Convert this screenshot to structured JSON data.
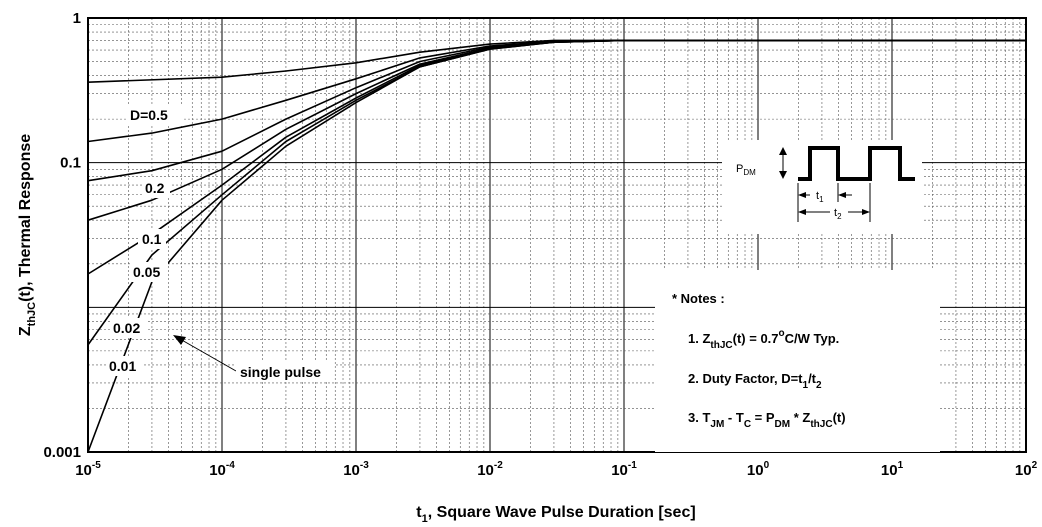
{
  "chart_data": {
    "type": "line",
    "x_scale": "log",
    "y_scale": "log",
    "xlim": [
      1e-05,
      100
    ],
    "ylim": [
      0.001,
      1
    ],
    "xlabel_main": "t",
    "xlabel_sub": "1",
    "xlabel_rest": ", Square Wave Pulse Duration [sec]",
    "ylabel_main": "Z",
    "ylabel_sub": "thJC",
    "ylabel_rest": "(t), Thermal Response",
    "x_ticks": [
      {
        "value": 1e-05,
        "base": "10",
        "exp": "-5"
      },
      {
        "value": 0.0001,
        "base": "10",
        "exp": "-4"
      },
      {
        "value": 0.001,
        "base": "10",
        "exp": "-3"
      },
      {
        "value": 0.01,
        "base": "10",
        "exp": "-2"
      },
      {
        "value": 0.1,
        "base": "10",
        "exp": "-1"
      },
      {
        "value": 1,
        "base": "10",
        "exp": "0"
      },
      {
        "value": 10,
        "base": "10",
        "exp": "1"
      },
      {
        "value": 100,
        "base": "10",
        "exp": "2"
      }
    ],
    "y_ticks": [
      {
        "value": 1,
        "label": "1"
      },
      {
        "value": 0.1,
        "label": "0.1"
      },
      {
        "value": 0.001,
        "label": "0.001"
      }
    ],
    "grid": true,
    "series": [
      {
        "name": "D=0.5",
        "x": [
          1e-05,
          0.0001,
          0.0003,
          0.001,
          0.003,
          0.01,
          0.03,
          0.1,
          100
        ],
        "y": [
          0.36,
          0.39,
          0.43,
          0.49,
          0.58,
          0.66,
          0.7,
          0.7,
          0.7
        ]
      },
      {
        "name": "0.2",
        "x": [
          1e-05,
          3e-05,
          0.0001,
          0.0003,
          0.001,
          0.003,
          0.01,
          0.03,
          0.1,
          100
        ],
        "y": [
          0.14,
          0.16,
          0.2,
          0.27,
          0.38,
          0.53,
          0.64,
          0.69,
          0.7,
          0.7
        ]
      },
      {
        "name": "0.1",
        "x": [
          1e-05,
          3e-05,
          0.0001,
          0.0003,
          0.001,
          0.003,
          0.01,
          0.03,
          0.1,
          100
        ],
        "y": [
          0.075,
          0.088,
          0.12,
          0.2,
          0.33,
          0.5,
          0.63,
          0.69,
          0.7,
          0.7
        ]
      },
      {
        "name": "0.05",
        "x": [
          1e-05,
          3e-05,
          0.0001,
          0.0003,
          0.001,
          0.003,
          0.01,
          0.03,
          0.1,
          100
        ],
        "y": [
          0.04,
          0.055,
          0.09,
          0.17,
          0.3,
          0.48,
          0.62,
          0.68,
          0.7,
          0.7
        ]
      },
      {
        "name": "0.02",
        "x": [
          1e-05,
          3e-05,
          0.0001,
          0.0003,
          0.001,
          0.003,
          0.01,
          0.03,
          0.1,
          100
        ],
        "y": [
          0.017,
          0.032,
          0.07,
          0.15,
          0.28,
          0.47,
          0.62,
          0.68,
          0.7,
          0.7
        ]
      },
      {
        "name": "0.01",
        "x": [
          1e-05,
          3e-05,
          0.0001,
          0.0003,
          0.001,
          0.003,
          0.01,
          0.03,
          0.1,
          100
        ],
        "y": [
          0.0055,
          0.023,
          0.06,
          0.14,
          0.27,
          0.46,
          0.61,
          0.68,
          0.7,
          0.7
        ]
      },
      {
        "name": "single pulse",
        "x": [
          1e-05,
          3e-05,
          0.0001,
          0.0003,
          0.001,
          0.003,
          0.01,
          0.03,
          0.1,
          100
        ],
        "y": [
          0.001,
          0.015,
          0.055,
          0.13,
          0.26,
          0.46,
          0.61,
          0.68,
          0.7,
          0.7
        ]
      }
    ],
    "curve_labels": {
      "d05": "D=0.5",
      "d02": "0.2",
      "d01": "0.1",
      "d005": "0.05",
      "d002": "0.02",
      "d001": "0.01",
      "single": "single pulse"
    },
    "inset": {
      "pdm_main": "P",
      "pdm_sub": "DM",
      "t1_main": "t",
      "t1_sub": "1",
      "t2_main": "t",
      "t2_sub": "2"
    },
    "notes": {
      "title": "* Notes :",
      "n1_a": "1. Z",
      "n1_sub": "thJC",
      "n1_b": "(t) = 0.7",
      "n1_sup": "o",
      "n1_c": "C/W Typ.",
      "n2_a": "2. Duty Factor, D=t",
      "n2_sub1": "1",
      "n2_b": "/t",
      "n2_sub2": "2",
      "n3_a": "3. T",
      "n3_sub1": "JM",
      "n3_b": " - T",
      "n3_sub2": "C",
      "n3_c": " = P",
      "n3_sub3": "DM",
      "n3_d": " * Z",
      "n3_sub4": "thJC",
      "n3_e": "(t)"
    }
  }
}
